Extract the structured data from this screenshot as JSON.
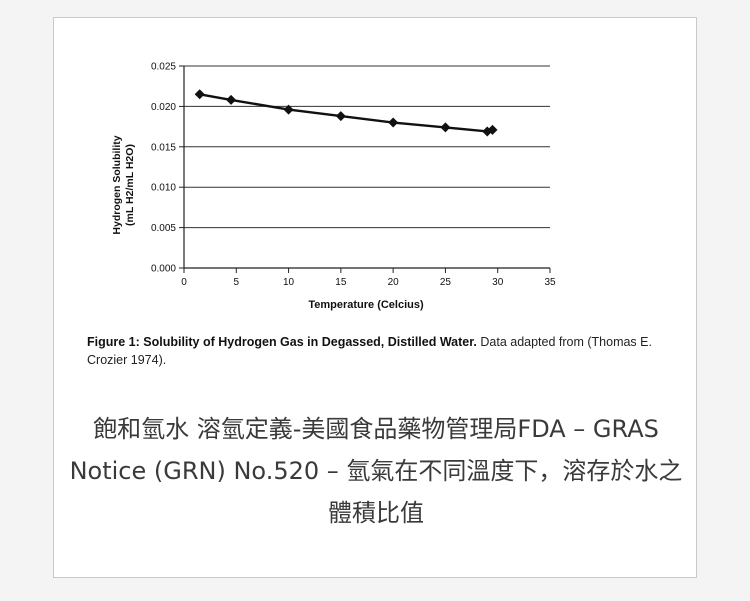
{
  "chart_data": {
    "type": "line",
    "ylabel_line1": "Hydrogen Solubility",
    "ylabel_line2": "(mL H2/mL H2O)",
    "xlabel": "Temperature (Celcius)",
    "xlim": [
      0,
      35
    ],
    "ylim": [
      0,
      0.025
    ],
    "x_ticks": [
      "0",
      "5",
      "10",
      "15",
      "20",
      "25",
      "30",
      "35"
    ],
    "y_ticks": [
      "0.000",
      "0.005",
      "0.010",
      "0.015",
      "0.020",
      "0.025"
    ],
    "grid": true,
    "legend": "none",
    "series": [
      {
        "x": [
          1.5,
          4.5,
          10,
          15,
          20,
          25,
          29,
          29.5
        ],
        "y": [
          0.0215,
          0.0208,
          0.0196,
          0.0188,
          0.018,
          0.0174,
          0.0169,
          0.0171
        ]
      }
    ]
  },
  "figure_caption": {
    "bold": "Figure 1: Solubility of Hydrogen Gas in Degassed, Distilled Water.",
    "rest": " Data adapted from (Thomas E. Crozier 1974)."
  },
  "page_caption": "飽和氫水 溶氫定義-美國食品藥物管理局FDA – GRAS Notice (GRN) No.520 – 氫氣在不同溫度下，溶存於水之體積比值"
}
